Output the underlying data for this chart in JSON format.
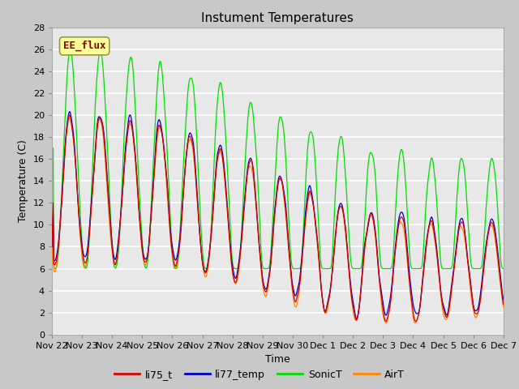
{
  "title": "Instument Temperatures",
  "xlabel": "Time",
  "ylabel": "Temperature (C)",
  "ylim": [
    0,
    28
  ],
  "yticks": [
    0,
    2,
    4,
    6,
    8,
    10,
    12,
    14,
    16,
    18,
    20,
    22,
    24,
    26,
    28
  ],
  "tick_labels": [
    "Nov 22",
    "Nov 23",
    "Nov 24",
    "Nov 25",
    "Nov 26",
    "Nov 27",
    "Nov 28",
    "Nov 29",
    "Nov 30",
    "Dec 1",
    "Dec 2",
    "Dec 3",
    "Dec 4",
    "Dec 5",
    "Dec 6",
    "Dec 7"
  ],
  "legend_label": "EE_flux",
  "series_labels": [
    "li75_t",
    "li77_temp",
    "SonicT",
    "AirT"
  ],
  "series_colors": [
    "#dd0000",
    "#0000cc",
    "#00dd00",
    "#ff8800"
  ],
  "fig_bg_color": "#c8c8c8",
  "plot_bg_color": "#e8e8e8",
  "title_fontsize": 11,
  "axis_label_fontsize": 9,
  "tick_fontsize": 8,
  "legend_box_facecolor": "#ffff99",
  "legend_box_edgecolor": "#999944",
  "legend_text_color": "#880000",
  "grid_color": "#ffffff",
  "line_width": 0.9,
  "n_points": 720
}
